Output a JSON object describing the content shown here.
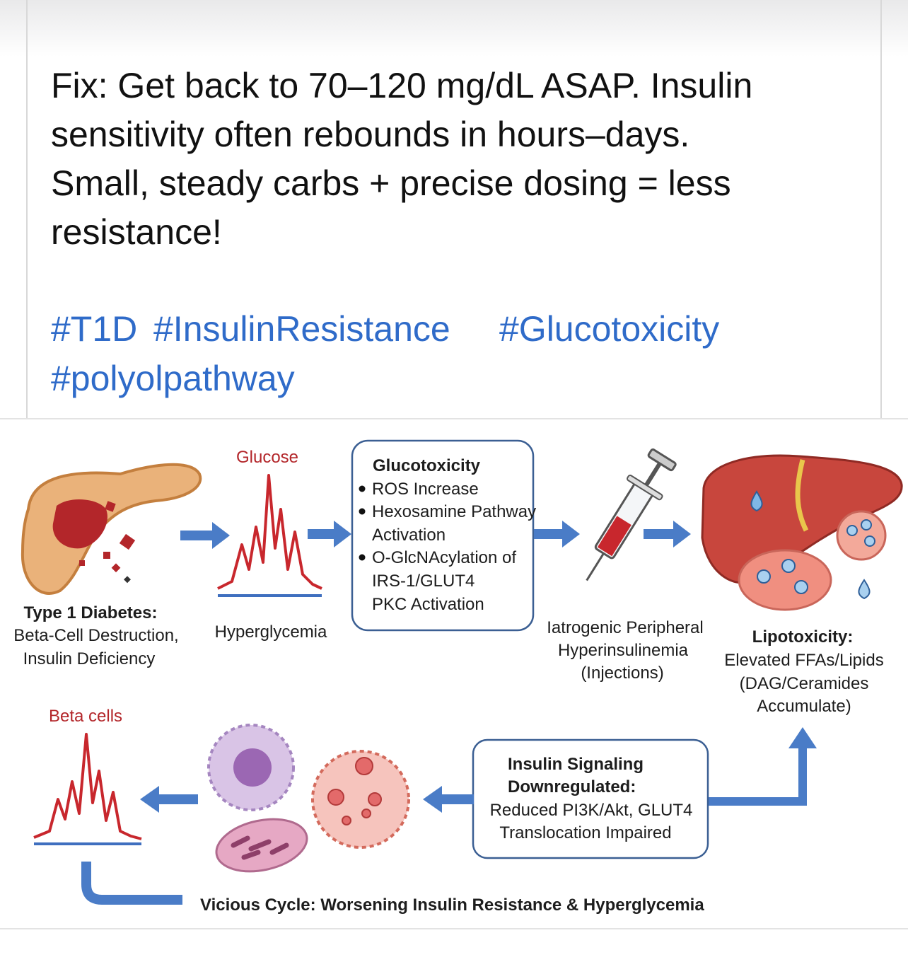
{
  "post": {
    "body_lines": [
      "Fix: Get back to 70–120 mg/dL ASAP. Insulin",
      "sensitivity often rebounds in hours–days.",
      "Small, steady carbs + precise dosing = less",
      "resistance!"
    ],
    "hashtags": [
      "#T1D",
      "#InsulinResistance",
      "#Glucotoxicity",
      "#polyolpathway"
    ]
  },
  "infographic": {
    "glucose_label": "Glucose",
    "pancreas_caption": [
      "Type 1 Diabetes:",
      "Beta-Cell Destruction,",
      "Insulin Deficiency"
    ],
    "hyperglycemia_label": "Hyperglycemia",
    "glucotoxicity_box": {
      "title": "Glucotoxicity",
      "lines": [
        "ROS Increase",
        "Hexosamine Pathway",
        "Activation",
        "O-GlcNAcylation of",
        "IRS-1/GLUT4",
        "PKC Activation"
      ]
    },
    "injection_caption": [
      "Iatrogenic Peripheral",
      "Hyperinsulinemia",
      "(Injections)"
    ],
    "lipotoxicity_caption": [
      "Lipotoxicity:",
      "Elevated FFAs/Lipids",
      "(DAG/Ceramides",
      "Accumulate)"
    ],
    "beta_cells_label": "Beta cells",
    "signaling_box": [
      "Insulin Signaling",
      "Downregulated:",
      "Reduced PI3K/Akt, GLUT4",
      "Translocation Impaired"
    ],
    "footer": "Vicious Cycle: Worsening Insulin Resistance & Hyperglycemia"
  }
}
